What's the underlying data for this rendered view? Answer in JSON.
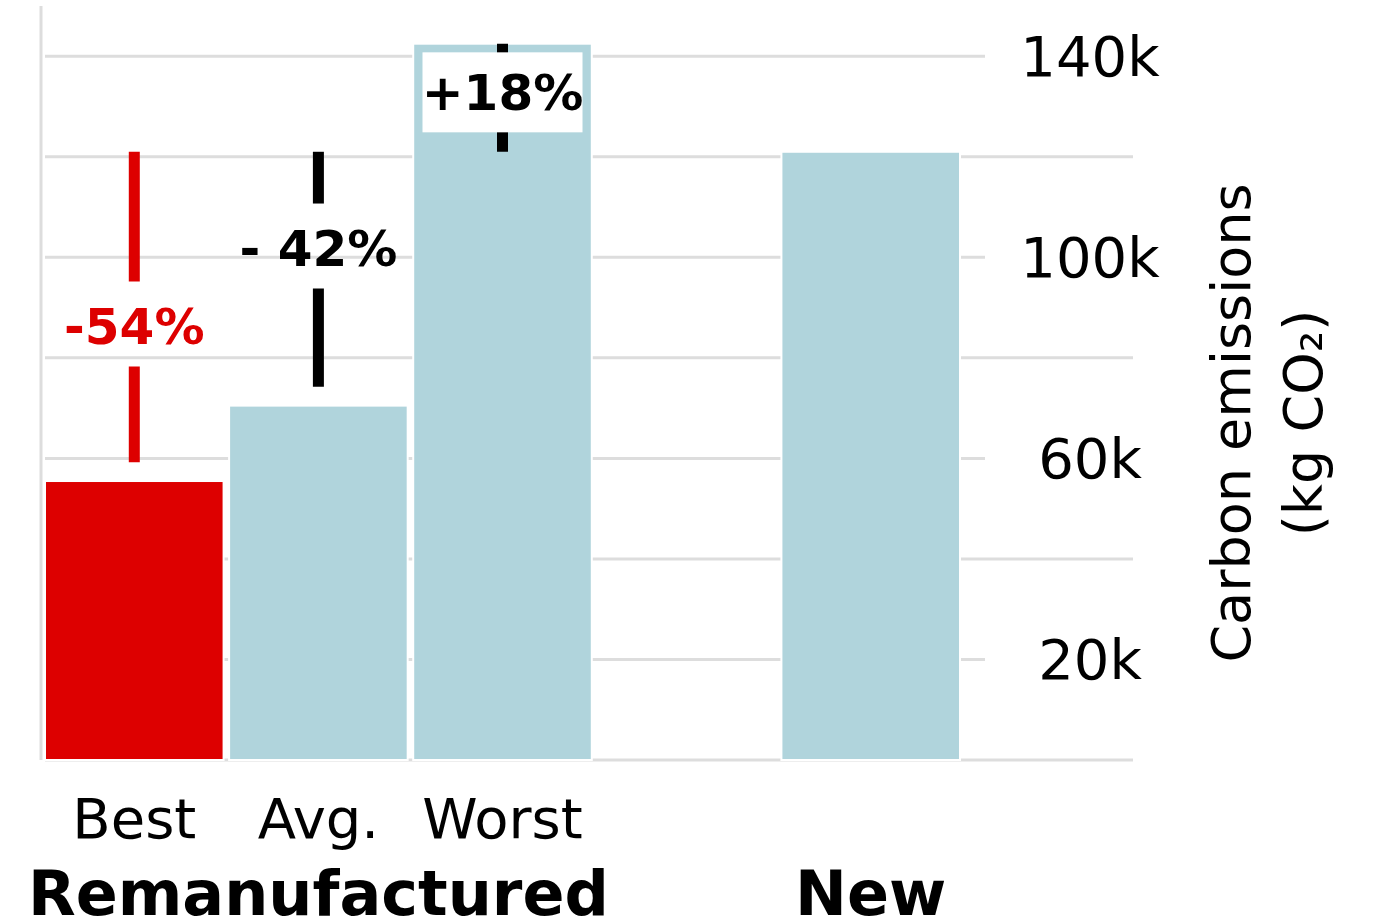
{
  "chart_data": {
    "type": "bar",
    "categories": [
      "Best",
      "Avg.",
      "Worst",
      null,
      "New"
    ],
    "values": [
      55500,
      70500,
      142500,
      null,
      121000
    ],
    "colors": [
      "#dd0000",
      "#b0d4dc",
      "#b0d4dc",
      null,
      "#b0d4dc"
    ],
    "xlabel": "Remanufactured",
    "ylabel": "Carbon emissions\n(kg CO₂)",
    "ylim": [
      0,
      150000
    ],
    "yticks": [
      {
        "value": 0,
        "label": null
      },
      {
        "value": 20000,
        "label": "20k"
      },
      {
        "value": 40000,
        "label": null
      },
      {
        "value": 60000,
        "label": "60k"
      },
      {
        "value": 80000,
        "label": null
      },
      {
        "value": 100000,
        "label": "100k"
      },
      {
        "value": 120000,
        "label": null
      },
      {
        "value": 140000,
        "label": "140k"
      }
    ],
    "grid": "y",
    "annotations": [
      "-54%",
      "- 42%",
      "+18%"
    ]
  }
}
